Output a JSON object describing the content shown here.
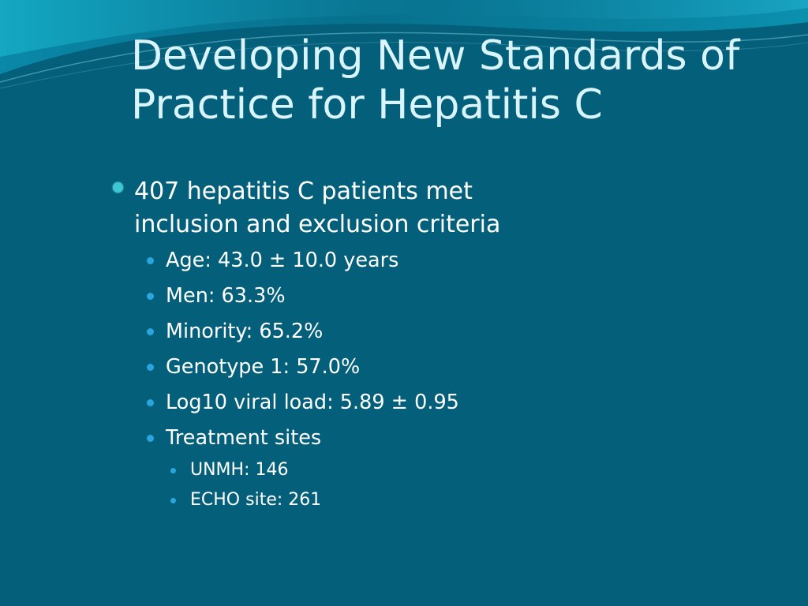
{
  "slide": {
    "title_lines": [
      "Developing New Standards of",
      "Practice for Hepatitis C"
    ],
    "main_bullet_lines": [
      "407 hepatitis C patients met",
      "inclusion and exclusion criteria"
    ],
    "sub_bullets": [
      "Age: 43.0 ± 10.0 years",
      "Men:  63.3%",
      "Minority:  65.2%",
      "Genotype 1:  57.0%",
      "Log10 viral load:  5.89 ± 0.95",
      "Treatment sites"
    ],
    "site_bullets": [
      "UNMH:  146",
      "ECHO site:  261"
    ]
  },
  "colors": {
    "background": "#035f7a",
    "title_text": "#d9f5fb",
    "bullet_text": "#ffffff",
    "main_bullet_dot": "#3bc7d6",
    "sub_bullet_dot": "#2aa6df"
  }
}
